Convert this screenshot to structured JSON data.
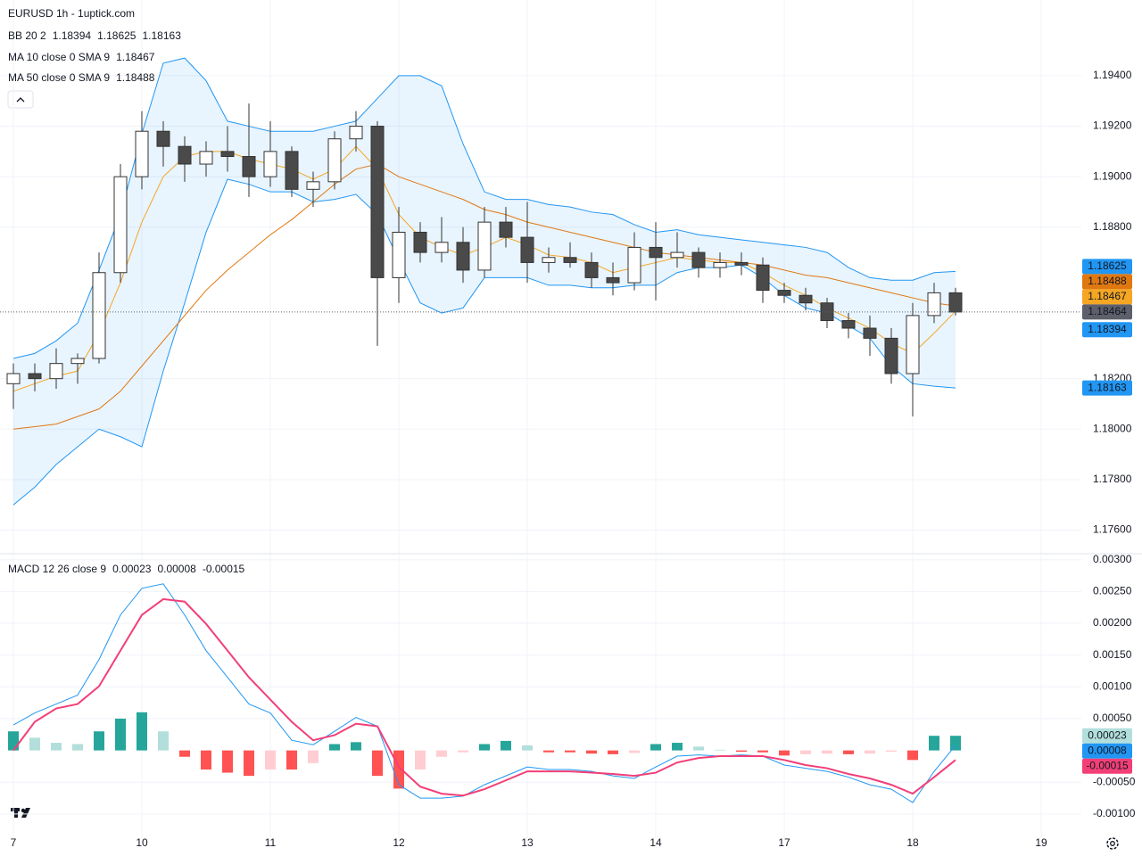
{
  "chart_data": [
    {
      "type": "candlestick",
      "title": "EURUSD 1h - 1uptick.com",
      "x": [
        0,
        4,
        8,
        12,
        16,
        20,
        24,
        28,
        32,
        36,
        40,
        44,
        48,
        52,
        56,
        60,
        64,
        68,
        72,
        76,
        80,
        84,
        88,
        92,
        96,
        100,
        104,
        108,
        112,
        116,
        120,
        124,
        128,
        132,
        136,
        140,
        144,
        148,
        152,
        156,
        160,
        164,
        168,
        172,
        176
      ],
      "open": [
        1.1818,
        1.1822,
        1.182,
        1.1826,
        1.1828,
        1.1862,
        1.19,
        1.1918,
        1.1912,
        1.1905,
        1.191,
        1.1908,
        1.19,
        1.191,
        1.1895,
        1.1898,
        1.1915,
        1.192,
        1.186,
        1.1878,
        1.187,
        1.1874,
        1.1863,
        1.1882,
        1.1876,
        1.1866,
        1.1868,
        1.1866,
        1.186,
        1.1858,
        1.1872,
        1.1868,
        1.187,
        1.1864,
        1.1866,
        1.1865,
        1.1855,
        1.1853,
        1.185,
        1.1843,
        1.184,
        1.1836,
        1.1822,
        1.1845,
        1.1854
      ],
      "high": [
        1.1826,
        1.1826,
        1.1832,
        1.183,
        1.187,
        1.1905,
        1.1926,
        1.1922,
        1.1916,
        1.1914,
        1.192,
        1.1929,
        1.1922,
        1.1912,
        1.1902,
        1.1918,
        1.1926,
        1.1922,
        1.1888,
        1.1882,
        1.1884,
        1.188,
        1.1888,
        1.1888,
        1.189,
        1.1872,
        1.1874,
        1.187,
        1.1866,
        1.1878,
        1.1882,
        1.1878,
        1.1872,
        1.187,
        1.187,
        1.1868,
        1.1858,
        1.1856,
        1.1852,
        1.1846,
        1.1845,
        1.184,
        1.185,
        1.1858,
        1.1856
      ],
      "low": [
        1.1808,
        1.1815,
        1.1816,
        1.1818,
        1.1826,
        1.1858,
        1.1895,
        1.1904,
        1.1898,
        1.19,
        1.1902,
        1.1892,
        1.1896,
        1.1892,
        1.1888,
        1.1895,
        1.191,
        1.1833,
        1.185,
        1.1866,
        1.1866,
        1.1858,
        1.186,
        1.1872,
        1.1858,
        1.1862,
        1.1864,
        1.1856,
        1.1853,
        1.1855,
        1.1851,
        1.1864,
        1.186,
        1.186,
        1.1861,
        1.185,
        1.185,
        1.1847,
        1.184,
        1.1836,
        1.1829,
        1.1818,
        1.1805,
        1.1842,
        1.1845
      ],
      "close": [
        1.1822,
        1.182,
        1.1826,
        1.1828,
        1.1862,
        1.19,
        1.1918,
        1.1912,
        1.1905,
        1.191,
        1.1908,
        1.19,
        1.191,
        1.1895,
        1.1898,
        1.1915,
        1.192,
        1.186,
        1.1878,
        1.187,
        1.1874,
        1.1863,
        1.1882,
        1.1876,
        1.1866,
        1.1868,
        1.1866,
        1.186,
        1.1858,
        1.1872,
        1.1868,
        1.187,
        1.1864,
        1.1866,
        1.1865,
        1.1855,
        1.1853,
        1.185,
        1.1843,
        1.184,
        1.1836,
        1.1822,
        1.1845,
        1.1854,
        1.18464
      ],
      "up_color": "#ffffff",
      "down_color": "#4a4a4a",
      "wick_color": "#333333",
      "last_color": "#5d606b",
      "bands": {
        "name": "BB 20 2",
        "basis": 1.18394,
        "color": "#2196f3",
        "fill": "rgba(33,150,243,0.1)",
        "upper": [
          1.1828,
          1.183,
          1.1835,
          1.1842,
          1.1863,
          1.1885,
          1.1917,
          1.1945,
          1.1947,
          1.1938,
          1.1922,
          1.192,
          1.1918,
          1.1918,
          1.1918,
          1.192,
          1.1922,
          1.1931,
          1.194,
          1.194,
          1.1936,
          1.1913,
          1.1894,
          1.1891,
          1.1891,
          1.1889,
          1.1888,
          1.1886,
          1.1885,
          1.1881,
          1.1878,
          1.1879,
          1.1877,
          1.1876,
          1.1875,
          1.1874,
          1.1873,
          1.1872,
          1.187,
          1.1864,
          1.186,
          1.1859,
          1.1859,
          1.1862,
          1.18625
        ],
        "lower": [
          1.177,
          1.1777,
          1.1786,
          1.1793,
          1.18,
          1.1797,
          1.1793,
          1.1823,
          1.185,
          1.1878,
          1.1899,
          1.1897,
          1.1894,
          1.1894,
          1.189,
          1.1891,
          1.1893,
          1.1885,
          1.1867,
          1.185,
          1.1846,
          1.1848,
          1.186,
          1.186,
          1.186,
          1.1857,
          1.1857,
          1.1856,
          1.1856,
          1.1857,
          1.1857,
          1.1862,
          1.1864,
          1.1864,
          1.1865,
          1.186,
          1.1853,
          1.1848,
          1.1846,
          1.1841,
          1.1836,
          1.1825,
          1.1818,
          1.1817,
          1.18163
        ]
      },
      "lines": [
        {
          "name": "MA 10 close 0 SMA 9",
          "color": "#f5a623",
          "values": [
            1.1815,
            1.1818,
            1.1821,
            1.1823,
            1.1838,
            1.1858,
            1.1882,
            1.19,
            1.1908,
            1.191,
            1.191,
            1.1907,
            1.1905,
            1.1903,
            1.1899,
            1.1903,
            1.1912,
            1.1903,
            1.1885,
            1.1876,
            1.1872,
            1.1869,
            1.1872,
            1.1876,
            1.1873,
            1.1869,
            1.1868,
            1.1866,
            1.1862,
            1.1864,
            1.1866,
            1.1868,
            1.1867,
            1.1866,
            1.1866,
            1.1862,
            1.1857,
            1.1853,
            1.1848,
            1.1844,
            1.184,
            1.1834,
            1.183,
            1.1838,
            1.18467
          ]
        },
        {
          "name": "MA 50 close 0 SMA 9",
          "color": "#e07812",
          "values": [
            1.18,
            1.1801,
            1.1802,
            1.1805,
            1.1808,
            1.1815,
            1.1825,
            1.1835,
            1.1845,
            1.1855,
            1.1863,
            1.187,
            1.1877,
            1.1883,
            1.189,
            1.1897,
            1.1903,
            1.1905,
            1.19,
            1.1897,
            1.1894,
            1.1891,
            1.1887,
            1.1885,
            1.1882,
            1.188,
            1.1878,
            1.1876,
            1.1874,
            1.1872,
            1.187,
            1.1869,
            1.1868,
            1.1867,
            1.1866,
            1.1865,
            1.1863,
            1.1861,
            1.186,
            1.1858,
            1.1856,
            1.1854,
            1.1852,
            1.185,
            1.18488
          ]
        }
      ],
      "ylim": [
        1.1751,
        1.197
      ],
      "yticks": [
        {
          "value": 1.176,
          "label": "1.17600"
        },
        {
          "value": 1.178,
          "label": "1.17800"
        },
        {
          "value": 1.18,
          "label": "1.18000"
        },
        {
          "value": 1.182,
          "label": "1.18200"
        },
        {
          "value": 1.188,
          "label": "1.18800"
        },
        {
          "value": 1.19,
          "label": "1.19000"
        },
        {
          "value": 1.192,
          "label": "1.19200"
        },
        {
          "value": 1.194,
          "label": "1.19400"
        }
      ],
      "grid": true
    },
    {
      "type": "macd",
      "name": "MACD 12 26 close 9",
      "histogram": {
        "colors": [
          "#26a69a",
          "#b2dfdb",
          "#ff5252",
          "#ffcdd2"
        ],
        "values": [
          0.0003,
          0.0002,
          0.00012,
          0.0001,
          0.0003,
          0.0005,
          0.0006,
          0.0003,
          -0.0001,
          -0.0003,
          -0.00035,
          -0.0004,
          -0.0003,
          -0.0003,
          -0.0002,
          0.0001,
          0.00013,
          -0.0004,
          -0.0006,
          -0.0003,
          -0.0001,
          -3e-05,
          0.0001,
          0.00015,
          8e-05,
          -3e-05,
          -3e-05,
          -5e-05,
          -6e-05,
          -4e-05,
          0.0001,
          0.00012,
          6e-05,
          1e-05,
          -2e-05,
          -3e-05,
          -8e-05,
          -6e-05,
          -5e-05,
          -6e-05,
          -5e-05,
          -2e-05,
          -0.00015,
          0.00023,
          0.00023
        ]
      },
      "macd": {
        "color": "#2196f3",
        "values": [
          0.0004,
          0.00059,
          0.00073,
          0.00087,
          0.00143,
          0.00213,
          0.00255,
          0.00262,
          0.00213,
          0.00157,
          0.00115,
          0.00073,
          0.00059,
          0.00016,
          9e-05,
          0.0003,
          0.00052,
          0.00038,
          -0.00054,
          -0.00075,
          -0.00075,
          -0.00072,
          -0.00054,
          -0.0004,
          -0.00026,
          -0.0003,
          -0.0003,
          -0.00033,
          -0.0004,
          -0.00044,
          -0.00026,
          -9e-05,
          -7e-05,
          -9e-05,
          -7e-05,
          -9e-05,
          -0.00023,
          -0.00028,
          -0.00033,
          -0.00042,
          -0.00054,
          -0.00061,
          -0.00082,
          -0.00033,
          8e-05
        ]
      },
      "signal": {
        "color": "#f23f77",
        "values": [
          0,
          0.00045,
          0.00066,
          0.00073,
          0.00101,
          0.00157,
          0.00213,
          0.00238,
          0.00234,
          0.00199,
          0.00157,
          0.00115,
          0.0008,
          0.00045,
          0.00016,
          0.00024,
          0.00042,
          0.00038,
          -0.00026,
          -0.00057,
          -0.00068,
          -0.00071,
          -0.00061,
          -0.00047,
          -0.00033,
          -0.00033,
          -0.00033,
          -0.00035,
          -0.00037,
          -0.0004,
          -0.00035,
          -0.00019,
          -0.00012,
          -9e-05,
          -9e-05,
          -9e-05,
          -0.00015,
          -0.00023,
          -0.00028,
          -0.00037,
          -0.00044,
          -0.00054,
          -0.00068,
          -0.00042,
          -0.00015
        ]
      },
      "ylim": [
        -0.00138,
        0.00308
      ],
      "yticks": [
        {
          "value": -0.001,
          "label": "-0.00100"
        },
        {
          "value": -0.0005,
          "label": "-0.00050"
        },
        {
          "value": 0.0005,
          "label": "0.00050"
        },
        {
          "value": 0.001,
          "label": "0.00100"
        },
        {
          "value": 0.0015,
          "label": "0.00150"
        },
        {
          "value": 0.002,
          "label": "0.00200"
        },
        {
          "value": 0.0025,
          "label": "0.00250"
        },
        {
          "value": 0.003,
          "label": "0.00300"
        }
      ],
      "xlim": [
        -2.5,
        199.5
      ],
      "xticks": [
        {
          "value": 0,
          "label": "7"
        },
        {
          "value": 24,
          "label": "10"
        },
        {
          "value": 48,
          "label": "11"
        },
        {
          "value": 72,
          "label": "12"
        },
        {
          "value": 96,
          "label": "13"
        },
        {
          "value": 120,
          "label": "14"
        },
        {
          "value": 144,
          "label": "17"
        },
        {
          "value": 168,
          "label": "18"
        },
        {
          "value": 192,
          "label": "19"
        }
      ],
      "grid": true
    }
  ]
}
